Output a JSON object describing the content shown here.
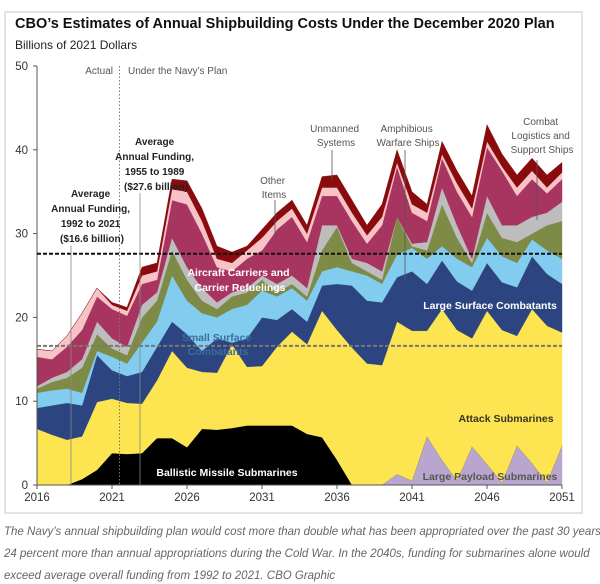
{
  "chart_data": {
    "type": "area",
    "stacked": true,
    "title": "CBO’s Estimates of Annual Shipbuilding Costs Under the December 2020 Plan",
    "ylabel": "Billions of 2021 Dollars",
    "xlabel": "",
    "ylim": [
      0,
      50
    ],
    "yticks": [
      "0",
      "10",
      "20",
      "30",
      "40",
      "50"
    ],
    "xlim": [
      2016,
      2051
    ],
    "xticks": [
      "2016",
      "2021",
      "2026",
      "2031",
      "2036",
      "2041",
      "2046",
      "2051"
    ],
    "grid": false,
    "x": [
      2016,
      2017,
      2018,
      2019,
      2020,
      2021,
      2022,
      2023,
      2024,
      2025,
      2026,
      2027,
      2028,
      2029,
      2030,
      2031,
      2032,
      2033,
      2034,
      2035,
      2036,
      2037,
      2038,
      2039,
      2040,
      2041,
      2042,
      2043,
      2044,
      2045,
      2046,
      2047,
      2048,
      2049,
      2050,
      2051
    ],
    "series": [
      {
        "name": "Large Payload Submarines",
        "color": "#b9a6cf",
        "values": [
          0,
          0,
          0,
          0,
          0,
          0,
          0,
          0,
          0,
          0,
          0,
          0,
          0,
          0,
          0,
          0,
          0,
          0,
          0,
          0,
          0,
          0,
          0,
          0,
          1.3,
          0.5,
          5.8,
          3,
          0.5,
          4.6,
          2.5,
          0.3,
          4.7,
          2.6,
          0.3,
          4.7
        ]
      },
      {
        "name": "Ballistic Missile Submarines",
        "color": "#000000",
        "values": [
          0,
          0,
          0,
          0.7,
          1.8,
          3.8,
          3.7,
          3.8,
          5.6,
          5.6,
          4.5,
          6.7,
          6.6,
          6.8,
          7.1,
          7.1,
          7.1,
          7.1,
          6.1,
          5.7,
          3,
          0,
          0,
          0,
          0,
          0,
          0,
          0,
          0,
          0,
          0,
          0,
          0,
          0,
          0,
          0
        ]
      },
      {
        "name": "Attack Submarines",
        "color": "#fde552",
        "values": [
          6.7,
          6,
          5.4,
          5.1,
          8.1,
          6.5,
          6.1,
          5.9,
          6.9,
          10.4,
          9.5,
          6.8,
          6.8,
          10,
          7,
          7.1,
          9.4,
          11.2,
          10.7,
          15.1,
          15.5,
          16.4,
          14.5,
          14.3,
          18.2,
          17.9,
          12.6,
          18,
          18,
          12.9,
          18.3,
          18.2,
          13.1,
          18.4,
          18.7,
          13.5
        ]
      },
      {
        "name": "Large Surface Combatants",
        "color": "#2c4480",
        "values": [
          2.5,
          3.5,
          4.4,
          3.7,
          5.6,
          3.4,
          3.2,
          3.8,
          4,
          3.5,
          4,
          2.5,
          4.1,
          0.2,
          3.4,
          5.8,
          3.2,
          2.7,
          2.7,
          3,
          5.5,
          7.4,
          7.5,
          7.5,
          5.3,
          7.1,
          5.6,
          5.8,
          5.8,
          5.7,
          5.7,
          5.7,
          5.8,
          6.3,
          6.2,
          5.8
        ]
      },
      {
        "name": "Small Surface Combatants",
        "color": "#82cdef",
        "values": [
          1.8,
          1.8,
          1.7,
          1.5,
          0.5,
          1.6,
          1.5,
          3.5,
          3,
          5.5,
          4,
          4.5,
          2.5,
          4,
          4,
          3.2,
          2.8,
          2.5,
          2.5,
          1.7,
          2,
          1.7,
          3,
          2.2,
          2.7,
          2.8,
          3,
          1.7,
          2.7,
          2.8,
          3,
          3.1,
          2.9,
          2,
          2.8,
          3
        ]
      },
      {
        "name": "Amphibious Warfare Ships",
        "color": "#7e8b47",
        "values": [
          0.5,
          1,
          1.3,
          3,
          2,
          1,
          1,
          3,
          2.5,
          3,
          2.5,
          1.5,
          1,
          1.5,
          1.5,
          1.3,
          0.5,
          0.5,
          0.5,
          2.5,
          4.8,
          1,
          0.5,
          0.5,
          4.5,
          0.2,
          1,
          5,
          2.5,
          0.5,
          3,
          2.2,
          2.5,
          0.7,
          3,
          4.5
        ]
      },
      {
        "name": "Combat Logistics and Support Ships",
        "color": "#bdbdbd",
        "values": [
          0.3,
          0.5,
          0.7,
          1,
          1.5,
          1.2,
          1,
          1.5,
          1,
          1.5,
          1.5,
          1.5,
          0.8,
          0.5,
          0.5,
          0.5,
          1,
          1,
          1,
          3,
          0.2,
          0.5,
          1,
          1,
          0,
          0.3,
          1,
          2,
          1.5,
          0.5,
          2,
          1.5,
          2,
          2,
          1.5,
          2.3
        ]
      },
      {
        "name": "Aircraft Carriers and Carrier Refuelings",
        "color": "#a8355f",
        "values": [
          3.5,
          2.2,
          3,
          3.5,
          3,
          3.5,
          3.7,
          2.5,
          1.5,
          4.5,
          7.5,
          6.5,
          4.2,
          2.5,
          3.5,
          3,
          6.5,
          7,
          5.5,
          3.5,
          3.5,
          4.5,
          2.3,
          5.5,
          6,
          3.7,
          2.5,
          3.5,
          4,
          5,
          5.8,
          6.5,
          3.5,
          4.5,
          2.3,
          2.7
        ]
      },
      {
        "name": "Other Items",
        "color": "#f7c3c6",
        "values": [
          0.9,
          1,
          1.3,
          2,
          1,
          0.5,
          0.6,
          1,
          1,
          1.3,
          1.5,
          1.5,
          1,
          1,
          1,
          1.5,
          1,
          1,
          1,
          1,
          1,
          1,
          1,
          1,
          0.5,
          1,
          1,
          0.5,
          1,
          1,
          0.7,
          0.5,
          1,
          1,
          0.7,
          0.8
        ]
      },
      {
        "name": "Unmanned Systems",
        "color": "#8a0b0e",
        "values": [
          0,
          0,
          0,
          0,
          0,
          0.3,
          0.4,
          1,
          1,
          1.2,
          1.3,
          1.5,
          1.5,
          1.3,
          0.5,
          1,
          1,
          1,
          1,
          1.3,
          1.5,
          1.5,
          1.2,
          1.5,
          1.5,
          1.5,
          1,
          1.5,
          1.5,
          1.5,
          2,
          1.5,
          1.5,
          1.5,
          1.5,
          1.2
        ]
      }
    ],
    "reference_lines": [
      {
        "value": 16.6,
        "style": "dashed",
        "color": "#777777",
        "label": [
          "Average",
          "Annual Funding,",
          "1992 to 2021",
          "($16.6 billion)"
        ]
      },
      {
        "value": 27.6,
        "style": "dashed",
        "color": "#111111",
        "label": [
          "Average",
          "Annual Funding,",
          "1955 to 1989",
          "($27.6 billion)"
        ]
      }
    ],
    "period_divider": {
      "x": 2021.5,
      "left_label": "Actual",
      "right_label": "Under the Navy’s Plan"
    },
    "callouts": {
      "other_items": [
        "Other",
        "Items"
      ],
      "unmanned": [
        "Unmanned",
        "Systems"
      ],
      "amphibious": [
        "Amphibious",
        "Warfare Ships"
      ],
      "combat_logistics": [
        "Combat",
        "Logistics and",
        "Support Ships"
      ]
    },
    "area_labels": {
      "carriers": [
        "Aircraft Carriers and",
        "Carrier Refuelings"
      ],
      "small_surface": [
        "Small Surface",
        "Combatants"
      ],
      "large_surface": "Large Surface Combatants",
      "attack_subs": "Attack Submarines",
      "ballistic": "Ballistic Missile Submarines",
      "large_payload": "Large Payload Submarines"
    }
  },
  "caption": [
    "The Navy’s annual shipbuilding plan would cost more than double what has been appropriated over the past 30 years and",
    "24 percent more than annual appropriations during the Cold War. In the 2040s, funding for submarines alone would",
    "exceed average overall funding from 1992 to 2021. CBO Graphic"
  ]
}
